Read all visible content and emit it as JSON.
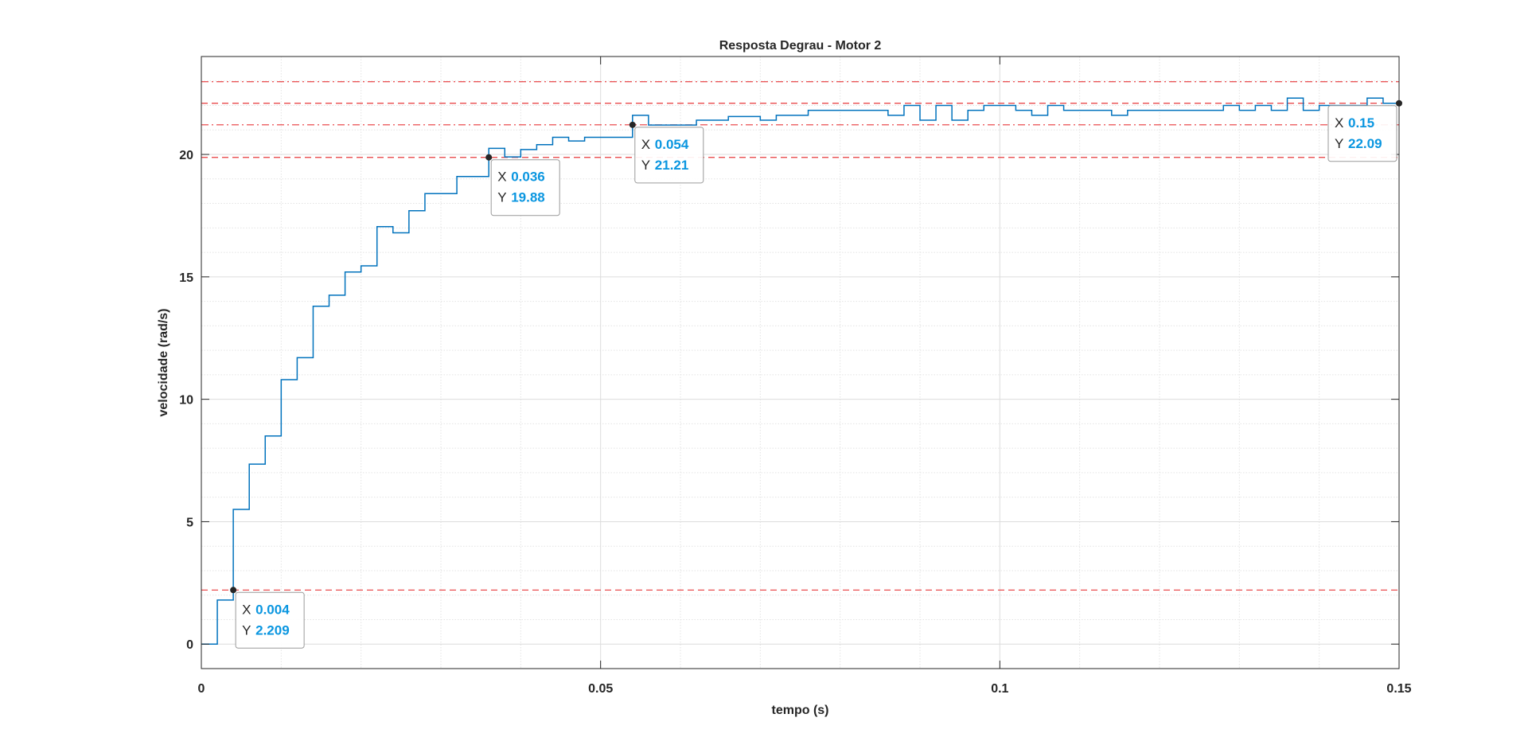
{
  "chart_data": {
    "type": "line",
    "step": true,
    "title": "Resposta Degrau - Motor 2",
    "xlabel": "tempo (s)",
    "ylabel": "velocidade (rad/s)",
    "xlim": [
      0,
      0.15
    ],
    "ylim": [
      -1,
      24
    ],
    "xticks": [
      0,
      0.05,
      0.1,
      0.15
    ],
    "xtick_labels": [
      "0",
      "0.05",
      "0.1",
      "0.15"
    ],
    "yticks": [
      0,
      5,
      10,
      15,
      20
    ],
    "ytick_labels": [
      "0",
      "5",
      "10",
      "15",
      "20"
    ],
    "grid": true,
    "minor_grid": true,
    "series": [
      {
        "color": "#0072bd",
        "x": [
          0,
          0.002,
          0.004,
          0.006,
          0.008,
          0.01,
          0.012,
          0.014,
          0.016,
          0.018,
          0.02,
          0.022,
          0.024,
          0.026,
          0.028,
          0.032,
          0.036,
          0.038,
          0.04,
          0.042,
          0.044,
          0.046,
          0.048,
          0.054,
          0.056,
          0.058,
          0.062,
          0.066,
          0.07,
          0.072,
          0.076,
          0.086,
          0.088,
          0.09,
          0.092,
          0.094,
          0.096,
          0.098,
          0.102,
          0.104,
          0.106,
          0.108,
          0.11,
          0.114,
          0.116,
          0.128,
          0.13,
          0.132,
          0.134,
          0.136,
          0.138,
          0.14,
          0.146,
          0.148,
          0.15
        ],
        "y": [
          0,
          1.8,
          5.5,
          7.35,
          8.5,
          10.8,
          11.7,
          13.8,
          14.25,
          15.2,
          15.45,
          17.05,
          16.8,
          17.7,
          18.4,
          19.1,
          20.25,
          19.9,
          20.2,
          20.4,
          20.7,
          20.55,
          20.7,
          21.6,
          21.2,
          21.2,
          21.4,
          21.55,
          21.4,
          21.6,
          21.8,
          21.6,
          22.0,
          21.4,
          22.0,
          21.4,
          21.8,
          22.0,
          21.8,
          21.6,
          22.0,
          21.8,
          21.8,
          21.6,
          21.8,
          22.0,
          21.8,
          22.0,
          21.8,
          22.3,
          21.8,
          22.0,
          22.3,
          22.09,
          22.09
        ]
      }
    ],
    "reference_lines": [
      {
        "y": 22.97,
        "style": "dashdot",
        "color": "#e8393b"
      },
      {
        "y": 22.09,
        "style": "dashed",
        "color": "#e8393b"
      },
      {
        "y": 21.21,
        "style": "dashdot",
        "color": "#e8393b"
      },
      {
        "y": 19.88,
        "style": "dashed",
        "color": "#e8393b"
      },
      {
        "y": 2.209,
        "style": "dashed",
        "color": "#e8393b"
      }
    ],
    "datatips": [
      {
        "x": 0.004,
        "y": 2.209,
        "x_text": "0.004",
        "y_text": "2.209"
      },
      {
        "x": 0.036,
        "y": 19.88,
        "x_text": "0.036",
        "y_text": "19.88"
      },
      {
        "x": 0.054,
        "y": 21.21,
        "x_text": "0.054",
        "y_text": "21.21"
      },
      {
        "x": 0.15,
        "y": 22.09,
        "x_text": "0.15",
        "y_text": "22.09"
      }
    ],
    "datatip_key_x": "X",
    "datatip_key_y": "Y"
  }
}
